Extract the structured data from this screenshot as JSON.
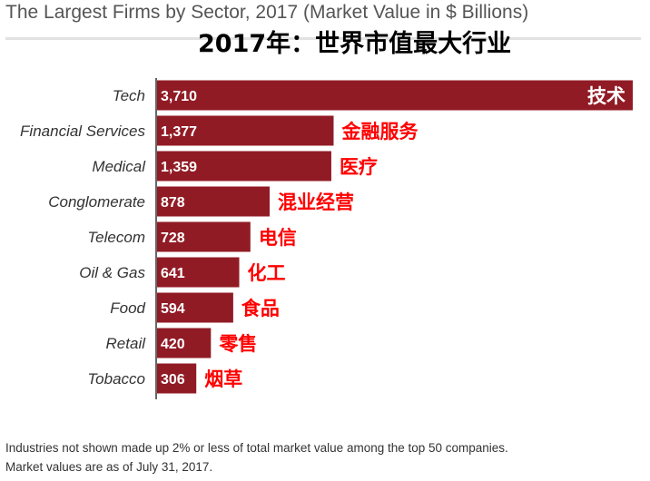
{
  "chart_data": {
    "type": "bar",
    "orientation": "horizontal",
    "title": "The Largest Firms by Sector, 2017 (Market Value in $ Billions)",
    "subtitle": "2017年：世界市值最大行业",
    "categories": [
      "Tech",
      "Financial Services",
      "Medical",
      "Conglomerate",
      "Telecom",
      "Oil & Gas",
      "Food",
      "Retail",
      "Tobacco"
    ],
    "value_labels": [
      "3,710",
      "1,377",
      "1,359",
      "878",
      "728",
      "641",
      "594",
      "420",
      "306"
    ],
    "annotations": [
      "技术",
      "金融服务",
      "医疗",
      "混业经营",
      "电信",
      "化工",
      "食品",
      "零售",
      "烟草"
    ],
    "series": [
      {
        "values": [
          3710,
          1377,
          1359,
          878,
          728,
          641,
          594,
          420,
          306
        ]
      }
    ],
    "xlim": [
      0,
      3710
    ],
    "grid": false,
    "legend": "none",
    "colors": {
      "bar": "#911b25",
      "annotation": "#ff0000",
      "inner_annotation": "#ffffff"
    }
  },
  "footnote": {
    "line1": "Industries not shown made up 2% or less of total market value among the top 50 companies.",
    "line2": "Market values are as of July 31, 2017."
  }
}
